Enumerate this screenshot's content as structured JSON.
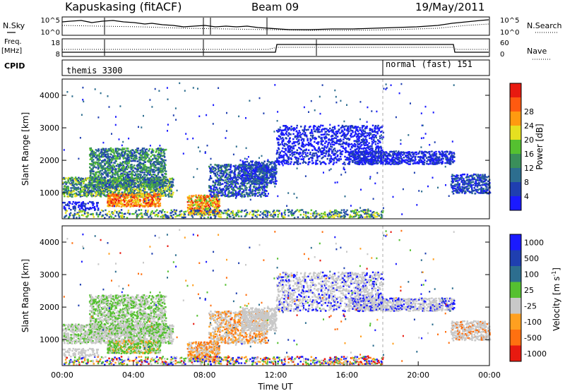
{
  "header": {
    "station": "Kapuskasing (fitACF)",
    "beam": "Beam 09",
    "date": "19/May/2011"
  },
  "side_labels": {
    "nsky": "N.Sky",
    "freq_line1": "Freq.",
    "freq_line2": "[MHz]",
    "cpid": "CPID",
    "nsearch": "N.Search",
    "nave": "Nave"
  },
  "noise_panel": {
    "left_ticks": [
      "10^5",
      "10^0"
    ],
    "right_ticks": [
      "10^5",
      "10^0"
    ]
  },
  "freq_panel": {
    "left_ticks": [
      "18",
      "8"
    ],
    "right_ticks": [
      "60",
      "0"
    ]
  },
  "cpid_panel": {
    "segments": [
      {
        "label": "themis 3300",
        "start_hour": 0.0
      },
      {
        "label": "normal (fast) 151",
        "start_hour": 18.0
      }
    ]
  },
  "colors": {
    "power": [
      "#1a1aff",
      "#1f3fb0",
      "#2d6e8f",
      "#3a8f5a",
      "#55c030",
      "#e6e020",
      "#ff9a10",
      "#ff5a10",
      "#e81a10"
    ],
    "velocity": [
      "#1a1aff",
      "#1f3fb0",
      "#2d6e8f",
      "#55c030",
      "#c8c8c8",
      "#ffa020",
      "#ff7010",
      "#e81a10"
    ]
  },
  "chart_data": [
    {
      "type": "heatmap",
      "name": "power",
      "ylabel": "Slant Range [km]",
      "yticks": [
        "1000",
        "2000",
        "3000",
        "4000"
      ],
      "ylim": [
        200,
        4500
      ],
      "xlim": [
        0,
        24
      ],
      "colorbar_label": "Power [dB]",
      "colorbar_ticks": [
        "4",
        "8",
        "12",
        "16",
        "20",
        "24",
        "28"
      ],
      "clim": [
        0,
        30
      ]
    },
    {
      "type": "heatmap",
      "name": "velocity",
      "ylabel": "Slant Range [km]",
      "yticks": [
        "1000",
        "2000",
        "3000",
        "4000"
      ],
      "ylim": [
        200,
        4500
      ],
      "xlim": [
        0,
        24
      ],
      "xticks": [
        "00:00",
        "04:00",
        "08:00",
        "12:00",
        "16:00",
        "20:00",
        "00:00"
      ],
      "xlabel": "Time UT",
      "colorbar_label_main": "Velocity [m s",
      "colorbar_label_sup": "-1",
      "colorbar_label_close": "]",
      "colorbar_ticks": [
        "1000",
        "500",
        "100",
        "25",
        "-25",
        "-100",
        "-500",
        "-1000"
      ]
    }
  ]
}
